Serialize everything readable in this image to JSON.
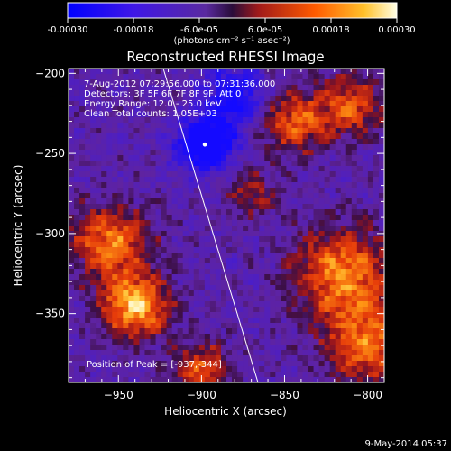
{
  "colorbar": {
    "ticks": [
      "-0.00030",
      "-0.00018",
      "-6.0e-05",
      "6.0e-05",
      "0.00018",
      "0.00030"
    ],
    "unit_label": "(photons cm⁻² s⁻¹ asec⁻²)",
    "min": -0.0003,
    "max": 0.0003
  },
  "chart_data": {
    "type": "heatmap",
    "title": "Reconstructed RHESSI Image",
    "xlabel": "Heliocentric X (arcsec)",
    "ylabel": "Heliocentric Y (arcsec)",
    "xlim": [
      -980,
      -790
    ],
    "ylim": [
      -393,
      -197
    ],
    "xticks": [
      -950,
      -900,
      -850,
      -800
    ],
    "yticks": [
      -200,
      -250,
      -300,
      -350
    ],
    "annotations": [
      "7-Aug-2012 07:29:56.000 to 07:31:36.000",
      "Detectors: 3F 5F 6F 7F 8F 9F, Att 0",
      "Energy Range: 12.0 - 25.0 keV",
      "Clean    Total counts: 1.05E+03"
    ],
    "peak_label": "Position of Peak = [-937,-344]",
    "peak": [
      -937,
      -344
    ],
    "marker": [
      -898,
      -245
    ],
    "limb_line": [
      [
        -923,
        -197
      ],
      [
        -866,
        -393
      ]
    ],
    "bright_regions": [
      {
        "x": -940,
        "y": -345,
        "strength": 1.0,
        "radius": 14
      },
      {
        "x": -955,
        "y": -305,
        "strength": 0.8,
        "radius": 16
      },
      {
        "x": -815,
        "y": -325,
        "strength": 0.85,
        "radius": 20
      },
      {
        "x": -800,
        "y": -370,
        "strength": 0.75,
        "radius": 18
      },
      {
        "x": -845,
        "y": -230,
        "strength": 0.7,
        "radius": 14
      },
      {
        "x": -810,
        "y": -220,
        "strength": 0.65,
        "radius": 14
      },
      {
        "x": -900,
        "y": -385,
        "strength": 0.65,
        "radius": 12
      },
      {
        "x": -870,
        "y": -275,
        "strength": 0.45,
        "radius": 10
      }
    ],
    "dim_regions": [
      {
        "x": -898,
        "y": -245,
        "strength": -1.0,
        "radius": 12
      },
      {
        "x": -880,
        "y": -215,
        "strength": -0.7,
        "radius": 14
      }
    ]
  },
  "footer": {
    "date": "9-May-2014 05:37"
  }
}
